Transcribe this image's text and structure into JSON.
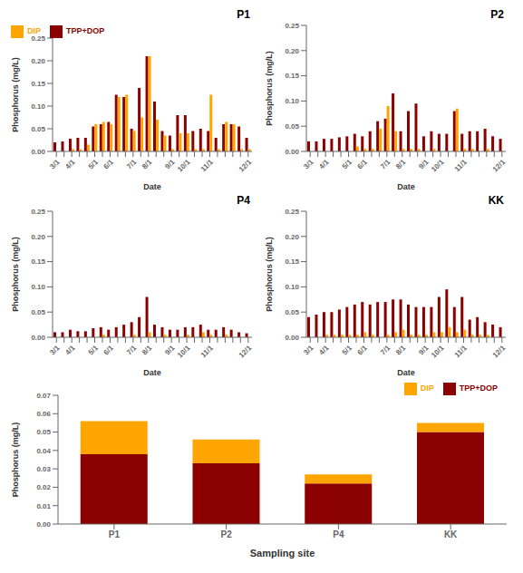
{
  "chart_data": [
    {
      "type": "bar",
      "title": "P1",
      "x_label": "Date",
      "y_label": "Phosphorus (mg/L)",
      "categories": [
        "3/1",
        null,
        "4/1",
        null,
        null,
        "5/1",
        null,
        "6/1",
        null,
        null,
        "7/1",
        null,
        "8/1",
        null,
        null,
        "9/1",
        null,
        "10/1",
        null,
        null,
        "11/1",
        null,
        null,
        null,
        null,
        "12/1"
      ],
      "series": [
        {
          "name": "TPP+DOP",
          "color": "#8B0000",
          "values": [
            0.02,
            0.022,
            0.028,
            0.03,
            0.03,
            0.055,
            0.06,
            0.065,
            0.125,
            0.12,
            0.05,
            0.14,
            0.21,
            0.11,
            0.045,
            0.035,
            0.08,
            0.08,
            0.045,
            0.05,
            0.045,
            0.03,
            0.06,
            0.06,
            0.055,
            0.03
          ]
        },
        {
          "name": "DIP",
          "color": "#FFA500",
          "values": [
            0.0,
            0.0,
            0.005,
            0.005,
            0.015,
            0.06,
            0.065,
            0.06,
            0.12,
            0.125,
            0.045,
            0.075,
            0.21,
            0.07,
            0.035,
            0.005,
            0.04,
            0.04,
            0.005,
            0.005,
            0.125,
            0.005,
            0.065,
            0.06,
            0.005,
            0.005
          ]
        }
      ],
      "ylim": [
        0,
        0.25
      ],
      "yticks": [
        {
          "value": 0,
          "label": "0.00"
        },
        {
          "value": 0.05,
          "label": "0.05"
        },
        {
          "value": 0.1,
          "label": "0.10"
        },
        {
          "value": 0.15,
          "label": "0.15"
        },
        {
          "value": 0.2,
          "label": "0.20"
        },
        {
          "value": 0.25,
          "label": "0.25"
        }
      ],
      "legend": "upper left"
    },
    {
      "type": "bar",
      "title": "P2",
      "x_label": "Date",
      "y_label": "Phosphorus (mg/L)",
      "categories": [
        "3/1",
        null,
        "4/1",
        null,
        null,
        "5/1",
        null,
        "6/1",
        null,
        null,
        "7/1",
        null,
        "8/1",
        null,
        null,
        "9/1",
        null,
        "10/1",
        null,
        null,
        "11/1",
        null,
        null,
        null,
        null,
        "12/1"
      ],
      "series": [
        {
          "name": "TPP+DOP",
          "color": "#8B0000",
          "values": [
            0.02,
            0.02,
            0.025,
            0.025,
            0.028,
            0.03,
            0.035,
            0.03,
            0.04,
            0.06,
            0.065,
            0.115,
            0.04,
            0.08,
            0.095,
            0.03,
            0.04,
            0.035,
            0.035,
            0.08,
            0.035,
            0.04,
            0.04,
            0.045,
            0.03,
            0.025
          ]
        },
        {
          "name": "DIP",
          "color": "#FFA500",
          "values": [
            0.0,
            0.0,
            0.0,
            0.0,
            0.0,
            0.0,
            0.01,
            0.005,
            0.005,
            0.045,
            0.09,
            0.04,
            0.005,
            0.005,
            0.005,
            0.0,
            0.005,
            0.0,
            0.0,
            0.085,
            0.005,
            0.005,
            0.0,
            0.005,
            0.0,
            0.0
          ]
        }
      ],
      "ylim": [
        0,
        0.25
      ],
      "yticks": [
        {
          "value": 0,
          "label": "0.00"
        },
        {
          "value": 0.05,
          "label": "0.05"
        },
        {
          "value": 0.1,
          "label": "0.10"
        },
        {
          "value": 0.15,
          "label": "0.15"
        },
        {
          "value": 0.2,
          "label": "0.20"
        },
        {
          "value": 0.25,
          "label": "0.25"
        }
      ]
    },
    {
      "type": "bar",
      "title": "P4",
      "x_label": "Date",
      "y_label": "Phosphorus (mg/L)",
      "categories": [
        "3/1",
        null,
        "4/1",
        null,
        null,
        "5/1",
        null,
        "6/1",
        null,
        null,
        "7/1",
        null,
        "8/1",
        null,
        null,
        "9/1",
        null,
        "10/1",
        null,
        null,
        "11/1",
        null,
        null,
        null,
        null,
        "12/1"
      ],
      "series": [
        {
          "name": "TPP+DOP",
          "color": "#8B0000",
          "values": [
            0.01,
            0.01,
            0.015,
            0.012,
            0.012,
            0.018,
            0.02,
            0.015,
            0.02,
            0.025,
            0.03,
            0.04,
            0.08,
            0.025,
            0.02,
            0.015,
            0.015,
            0.02,
            0.02,
            0.025,
            0.015,
            0.015,
            0.02,
            0.015,
            0.01,
            0.008
          ]
        },
        {
          "name": "DIP",
          "color": "#FFA500",
          "values": [
            0.0,
            0.0,
            0.0,
            0.0,
            0.0,
            0.0,
            0.005,
            0.0,
            0.0,
            0.0,
            0.005,
            0.0,
            0.01,
            0.0,
            0.005,
            0.0,
            0.0,
            0.005,
            0.0,
            0.01,
            0.005,
            0.0,
            0.005,
            0.0,
            0.0,
            0.0
          ]
        }
      ],
      "ylim": [
        0,
        0.25
      ],
      "yticks": [
        {
          "value": 0,
          "label": "0.00"
        },
        {
          "value": 0.05,
          "label": "0.05"
        },
        {
          "value": 0.1,
          "label": "0.10"
        },
        {
          "value": 0.15,
          "label": "0.15"
        },
        {
          "value": 0.2,
          "label": "0.20"
        },
        {
          "value": 0.25,
          "label": "0.25"
        }
      ]
    },
    {
      "type": "bar",
      "title": "KK",
      "x_label": "Date",
      "y_label": "Phosphorus (mg/L)",
      "categories": [
        "3/1",
        null,
        "4/1",
        null,
        null,
        "5/1",
        null,
        "6/1",
        null,
        null,
        "7/1",
        null,
        "8/1",
        null,
        null,
        "9/1",
        null,
        "10/1",
        null,
        null,
        "11/1",
        null,
        null,
        null,
        null,
        "12/1"
      ],
      "series": [
        {
          "name": "TPP+DOP",
          "color": "#8B0000",
          "values": [
            0.04,
            0.045,
            0.05,
            0.05,
            0.055,
            0.06,
            0.065,
            0.07,
            0.065,
            0.07,
            0.07,
            0.075,
            0.075,
            0.065,
            0.06,
            0.06,
            0.06,
            0.08,
            0.095,
            0.06,
            0.08,
            0.035,
            0.04,
            0.03,
            0.025,
            0.02
          ]
        },
        {
          "name": "DIP",
          "color": "#FFA500",
          "values": [
            0.0,
            0.0,
            0.005,
            0.005,
            0.005,
            0.005,
            0.005,
            0.01,
            0.005,
            0.0,
            0.005,
            0.01,
            0.015,
            0.005,
            0.005,
            0.005,
            0.01,
            0.01,
            0.02,
            0.01,
            0.015,
            0.005,
            0.005,
            0.005,
            0.0,
            0.0
          ]
        }
      ],
      "ylim": [
        0,
        0.25
      ],
      "yticks": [
        {
          "value": 0,
          "label": "0.00"
        },
        {
          "value": 0.05,
          "label": "0.05"
        },
        {
          "value": 0.1,
          "label": "0.10"
        },
        {
          "value": 0.15,
          "label": "0.15"
        },
        {
          "value": 0.2,
          "label": "0.20"
        },
        {
          "value": 0.25,
          "label": "0.25"
        }
      ]
    },
    {
      "type": "bar",
      "stacked": true,
      "x_label": "Sampling site",
      "y_label": "Phosphorus (mg/L)",
      "categories": [
        "P1",
        "P2",
        "P4",
        "KK"
      ],
      "series": [
        {
          "name": "TPP+DOP",
          "color": "#8B0000",
          "values": [
            0.038,
            0.033,
            0.022,
            0.05
          ]
        },
        {
          "name": "DIP",
          "color": "#FFA500",
          "values": [
            0.018,
            0.013,
            0.005,
            0.005
          ]
        }
      ],
      "ylim": [
        0,
        0.07
      ],
      "yticks": [
        {
          "value": 0,
          "label": "0.00"
        },
        {
          "value": 0.01,
          "label": "0.01"
        },
        {
          "value": 0.02,
          "label": "0.02"
        },
        {
          "value": 0.03,
          "label": "0.03"
        },
        {
          "value": 0.04,
          "label": "0.04"
        },
        {
          "value": 0.05,
          "label": "0.05"
        },
        {
          "value": 0.06,
          "label": "0.06"
        },
        {
          "value": 0.07,
          "label": "0.07"
        }
      ],
      "legend": "upper right"
    }
  ]
}
